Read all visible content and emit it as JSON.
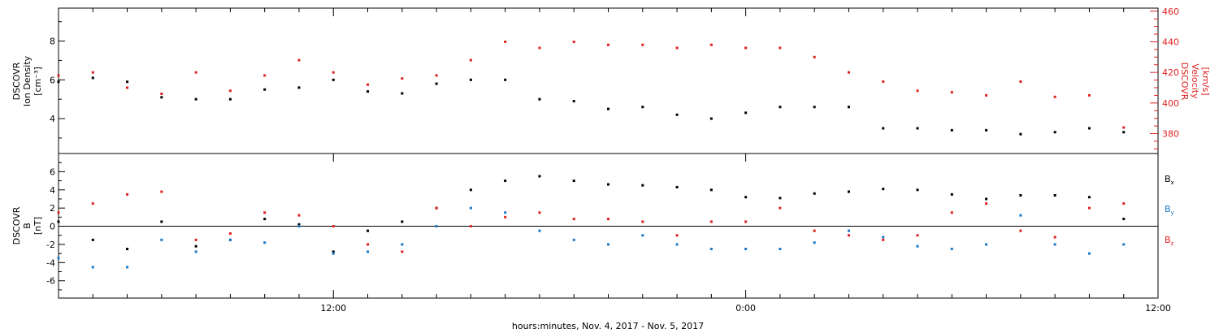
{
  "chart_data": [
    {
      "type": "scatter",
      "xlabel": "hours:minutes, Nov.  4, 2017 - Nov.  5, 2017",
      "x_ticks": [
        "12:00",
        "0:00",
        "12:00"
      ],
      "x_unit": "hours",
      "x_range": [
        4,
        36
      ],
      "left_axis": {
        "label_lines": [
          "DSCOVR",
          "Ion Density",
          "[cm⁻³]"
        ],
        "ylim": [
          2.2,
          9.7
        ],
        "ticks": [
          "4",
          "6",
          "8"
        ],
        "color": "#000000"
      },
      "right_axis": {
        "label_lines": [
          "DSCOVR",
          "Velocity",
          "[km/s]"
        ],
        "ylim": [
          367,
          462
        ],
        "ticks": [
          "380",
          "400",
          "420",
          "440",
          "460"
        ],
        "color": "#e02020"
      },
      "series": [
        {
          "axis": "left",
          "color": "#000000",
          "points": [
            [
              4.0,
              5.9
            ],
            [
              5.0,
              6.1
            ],
            [
              6.0,
              5.9
            ],
            [
              7.0,
              5.1
            ],
            [
              8.0,
              5.0
            ],
            [
              9.0,
              5.0
            ],
            [
              10.0,
              5.5
            ],
            [
              11.0,
              5.6
            ],
            [
              12.0,
              6.0
            ],
            [
              13.0,
              5.4
            ],
            [
              14.0,
              5.3
            ],
            [
              15.0,
              5.8
            ],
            [
              16.0,
              6.0
            ],
            [
              17.0,
              6.0
            ],
            [
              18.0,
              5.0
            ],
            [
              19.0,
              4.9
            ],
            [
              20.0,
              4.5
            ],
            [
              21.0,
              4.6
            ],
            [
              22.0,
              4.2
            ],
            [
              23.0,
              4.0
            ],
            [
              24.0,
              4.3
            ],
            [
              25.0,
              4.6
            ],
            [
              26.0,
              4.6
            ],
            [
              27.0,
              4.6
            ],
            [
              28.0,
              3.5
            ],
            [
              29.0,
              3.5
            ],
            [
              30.0,
              3.4
            ],
            [
              31.0,
              3.4
            ],
            [
              32.0,
              3.2
            ],
            [
              33.0,
              3.3
            ],
            [
              34.0,
              3.5
            ],
            [
              35.0,
              3.3
            ]
          ]
        },
        {
          "axis": "right",
          "color": "#e02020",
          "points": [
            [
              4.0,
              418
            ],
            [
              5.0,
              420
            ],
            [
              6.0,
              410
            ],
            [
              7.0,
              406
            ],
            [
              8.0,
              420
            ],
            [
              9.0,
              408
            ],
            [
              10.0,
              418
            ],
            [
              11.0,
              428
            ],
            [
              12.0,
              420
            ],
            [
              13.0,
              412
            ],
            [
              14.0,
              416
            ],
            [
              15.0,
              418
            ],
            [
              16.0,
              428
            ],
            [
              17.0,
              440
            ],
            [
              18.0,
              436
            ],
            [
              19.0,
              440
            ],
            [
              20.0,
              438
            ],
            [
              21.0,
              438
            ],
            [
              22.0,
              436
            ],
            [
              23.0,
              438
            ],
            [
              24.0,
              436
            ],
            [
              25.0,
              436
            ],
            [
              26.0,
              430
            ],
            [
              27.0,
              420
            ],
            [
              28.0,
              414
            ],
            [
              29.0,
              408
            ],
            [
              30.0,
              407
            ],
            [
              31.0,
              405
            ],
            [
              32.0,
              414
            ],
            [
              33.0,
              404
            ],
            [
              34.0,
              405
            ],
            [
              35.0,
              384
            ]
          ]
        }
      ]
    },
    {
      "type": "scatter",
      "xlabel": "hours:minutes, Nov.  4, 2017 - Nov.  5, 2017",
      "x_ticks": [
        "12:00",
        "0:00",
        "12:00"
      ],
      "x_unit": "hours",
      "x_range": [
        4,
        36
      ],
      "left_axis": {
        "label_lines": [
          "DSCOVR",
          "B",
          "[nT]"
        ],
        "ylim": [
          -7.9,
          8.0
        ],
        "ticks": [
          "-6",
          "-4",
          "-2",
          "0",
          "2",
          "4",
          "6"
        ],
        "color": "#000000"
      },
      "zero_line": true,
      "series": [
        {
          "name": "Bx",
          "legend_base": "B",
          "legend_sub": "x",
          "color": "#000000",
          "points": [
            [
              4.0,
              0.5
            ],
            [
              5.0,
              -1.5
            ],
            [
              6.0,
              -2.5
            ],
            [
              7.0,
              0.5
            ],
            [
              8.0,
              -2.2
            ],
            [
              9.0,
              -1.5
            ],
            [
              10.0,
              0.8
            ],
            [
              11.0,
              0.2
            ],
            [
              12.0,
              -2.8
            ],
            [
              13.0,
              -0.5
            ],
            [
              14.0,
              0.5
            ],
            [
              15.0,
              2.0
            ],
            [
              16.0,
              4.0
            ],
            [
              17.0,
              5.0
            ],
            [
              18.0,
              5.5
            ],
            [
              19.0,
              5.0
            ],
            [
              20.0,
              4.6
            ],
            [
              21.0,
              4.5
            ],
            [
              22.0,
              4.3
            ],
            [
              23.0,
              4.0
            ],
            [
              24.0,
              3.2
            ],
            [
              25.0,
              3.1
            ],
            [
              26.0,
              3.6
            ],
            [
              27.0,
              3.8
            ],
            [
              28.0,
              4.1
            ],
            [
              29.0,
              4.0
            ],
            [
              30.0,
              3.5
            ],
            [
              31.0,
              3.0
            ],
            [
              32.0,
              3.4
            ],
            [
              33.0,
              3.4
            ],
            [
              34.0,
              3.2
            ],
            [
              35.0,
              0.8
            ]
          ]
        },
        {
          "name": "By",
          "legend_base": "B",
          "legend_sub": "y",
          "color": "#1a78c8",
          "points": [
            [
              4.0,
              -3.5
            ],
            [
              5.0,
              -4.5
            ],
            [
              6.0,
              -4.5
            ],
            [
              7.0,
              -1.5
            ],
            [
              8.0,
              -2.8
            ],
            [
              9.0,
              -1.5
            ],
            [
              10.0,
              -1.8
            ],
            [
              11.0,
              0.0
            ],
            [
              12.0,
              -3.0
            ],
            [
              13.0,
              -2.8
            ],
            [
              14.0,
              -2.0
            ],
            [
              15.0,
              0.0
            ],
            [
              16.0,
              2.0
            ],
            [
              17.0,
              1.5
            ],
            [
              18.0,
              -0.5
            ],
            [
              19.0,
              -1.5
            ],
            [
              20.0,
              -2.0
            ],
            [
              21.0,
              -1.0
            ],
            [
              22.0,
              -2.0
            ],
            [
              23.0,
              -2.5
            ],
            [
              24.0,
              -2.5
            ],
            [
              25.0,
              -2.5
            ],
            [
              26.0,
              -1.8
            ],
            [
              27.0,
              -0.5
            ],
            [
              28.0,
              -1.2
            ],
            [
              29.0,
              -2.2
            ],
            [
              30.0,
              -2.5
            ],
            [
              31.0,
              -2.0
            ],
            [
              32.0,
              1.2
            ],
            [
              33.0,
              -2.0
            ],
            [
              34.0,
              -3.0
            ],
            [
              35.0,
              -2.0
            ]
          ]
        },
        {
          "name": "Bz",
          "legend_base": "B",
          "legend_sub": "z",
          "color": "#e02020",
          "points": [
            [
              4.0,
              1.5
            ],
            [
              5.0,
              2.5
            ],
            [
              6.0,
              3.5
            ],
            [
              7.0,
              3.8
            ],
            [
              8.0,
              -1.5
            ],
            [
              9.0,
              -0.8
            ],
            [
              10.0,
              1.5
            ],
            [
              11.0,
              1.2
            ],
            [
              12.0,
              0.0
            ],
            [
              13.0,
              -2.0
            ],
            [
              14.0,
              -2.8
            ],
            [
              15.0,
              2.0
            ],
            [
              16.0,
              0.0
            ],
            [
              17.0,
              1.0
            ],
            [
              18.0,
              1.5
            ],
            [
              19.0,
              0.8
            ],
            [
              20.0,
              0.8
            ],
            [
              21.0,
              0.5
            ],
            [
              22.0,
              -1.0
            ],
            [
              23.0,
              0.5
            ],
            [
              24.0,
              0.5
            ],
            [
              25.0,
              2.0
            ],
            [
              26.0,
              -0.5
            ],
            [
              27.0,
              -1.0
            ],
            [
              28.0,
              -1.5
            ],
            [
              29.0,
              -1.0
            ],
            [
              30.0,
              1.5
            ],
            [
              31.0,
              2.5
            ],
            [
              32.0,
              -0.5
            ],
            [
              33.0,
              -1.2
            ],
            [
              34.0,
              2.0
            ],
            [
              35.0,
              2.5
            ]
          ]
        }
      ]
    }
  ]
}
